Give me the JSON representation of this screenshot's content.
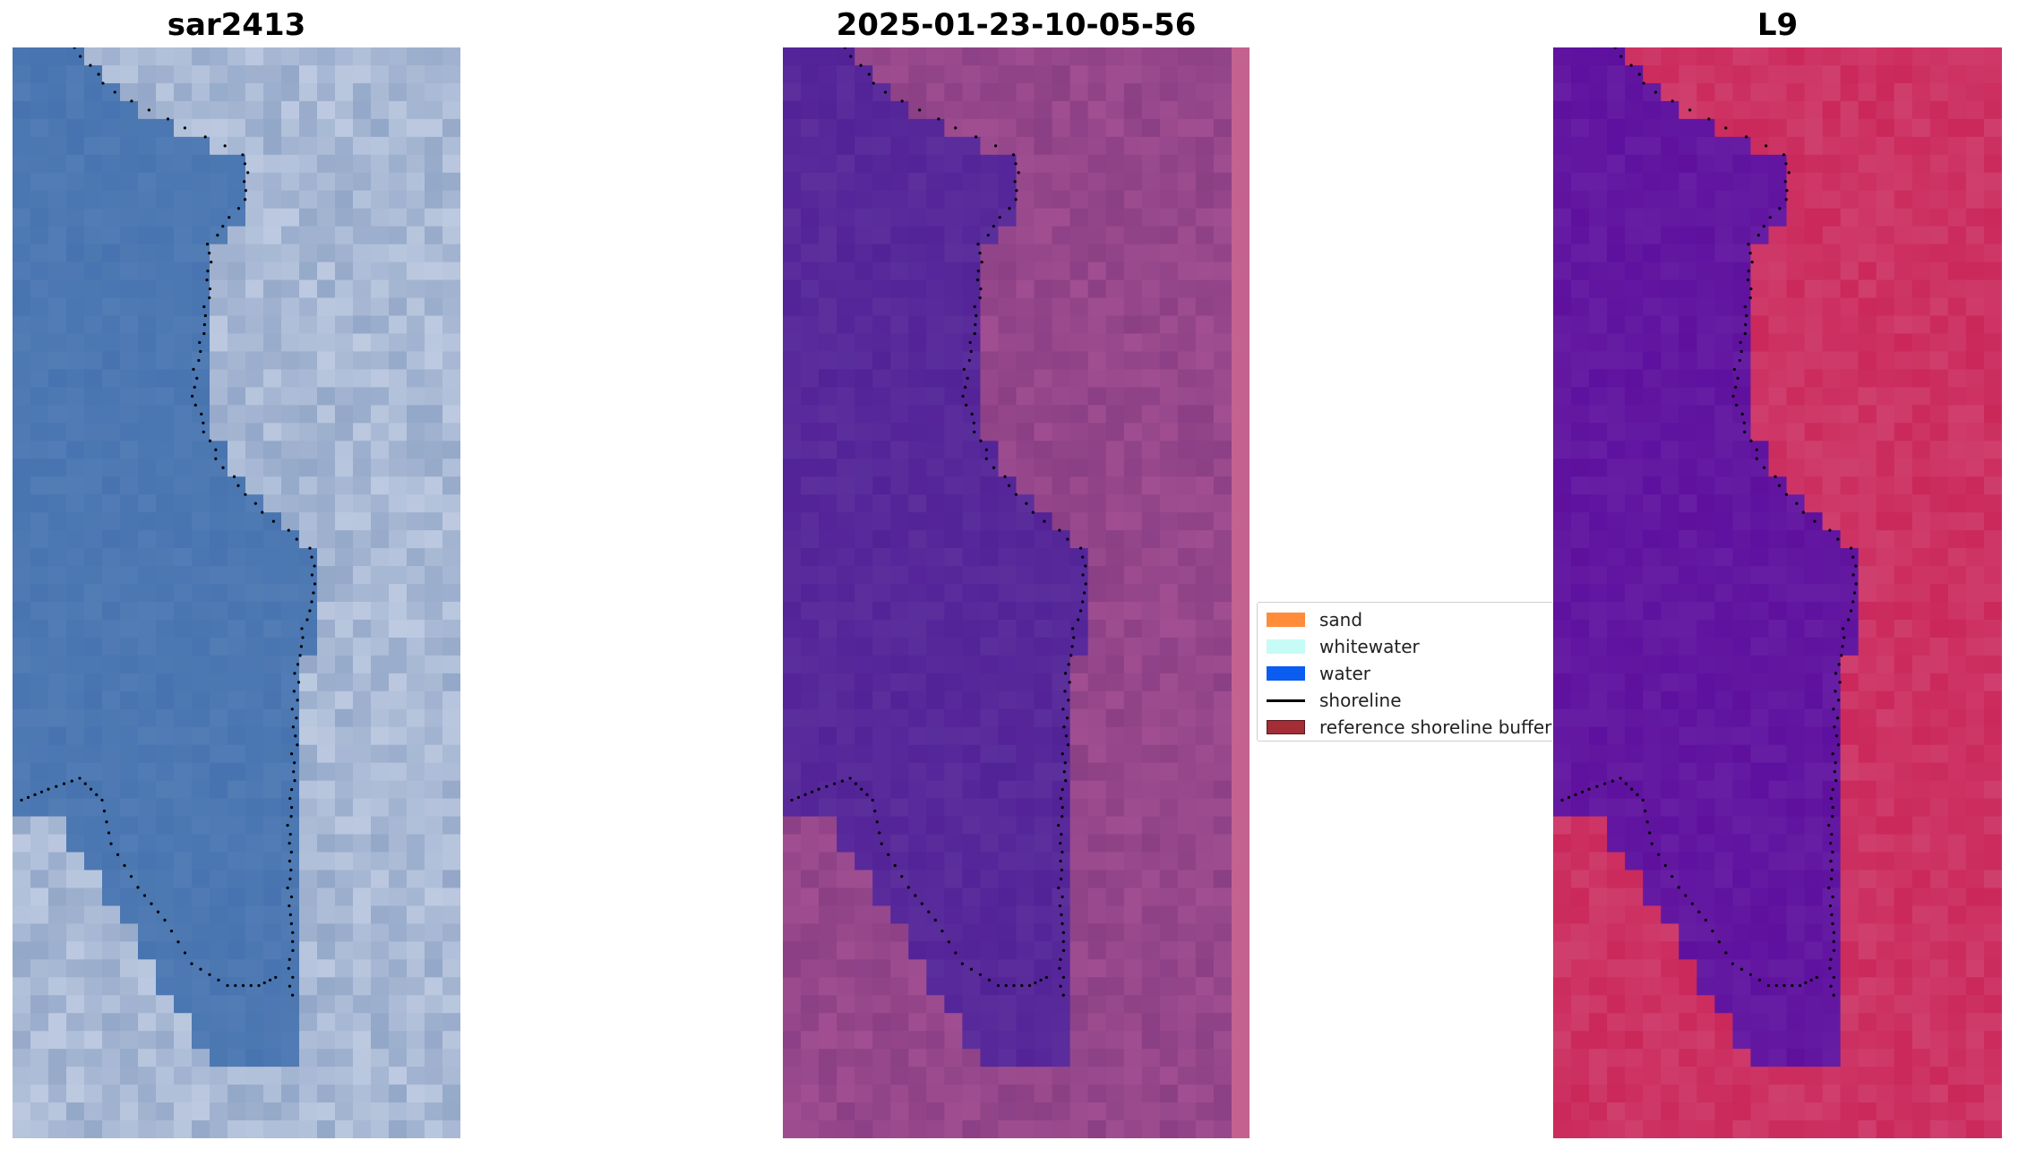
{
  "panels": [
    {
      "title": "sar2413"
    },
    {
      "title": "2025-01-23-10-05-56"
    },
    {
      "title": "L9"
    }
  ],
  "legend": {
    "items": [
      {
        "label": "sand",
        "color": "#ff8c3a",
        "kind": "patch"
      },
      {
        "label": "whitewater",
        "color": "#c6fbf6",
        "kind": "patch"
      },
      {
        "label": "water",
        "color": "#0b5cf0",
        "kind": "patch"
      },
      {
        "label": "shoreline",
        "color": "#000000",
        "kind": "line"
      },
      {
        "label": "reference shoreline buffer",
        "color": "#a32e36",
        "kind": "patch"
      }
    ]
  },
  "colors": {
    "rgb_water": "#4774b0",
    "rgb_land": "#93a7c8",
    "class_water": "#522297",
    "class_land": "#8b3f84",
    "false_color_water": "#5e109e",
    "false_color_land": "#cf3f6e",
    "shoreline_dots": "#000000"
  }
}
